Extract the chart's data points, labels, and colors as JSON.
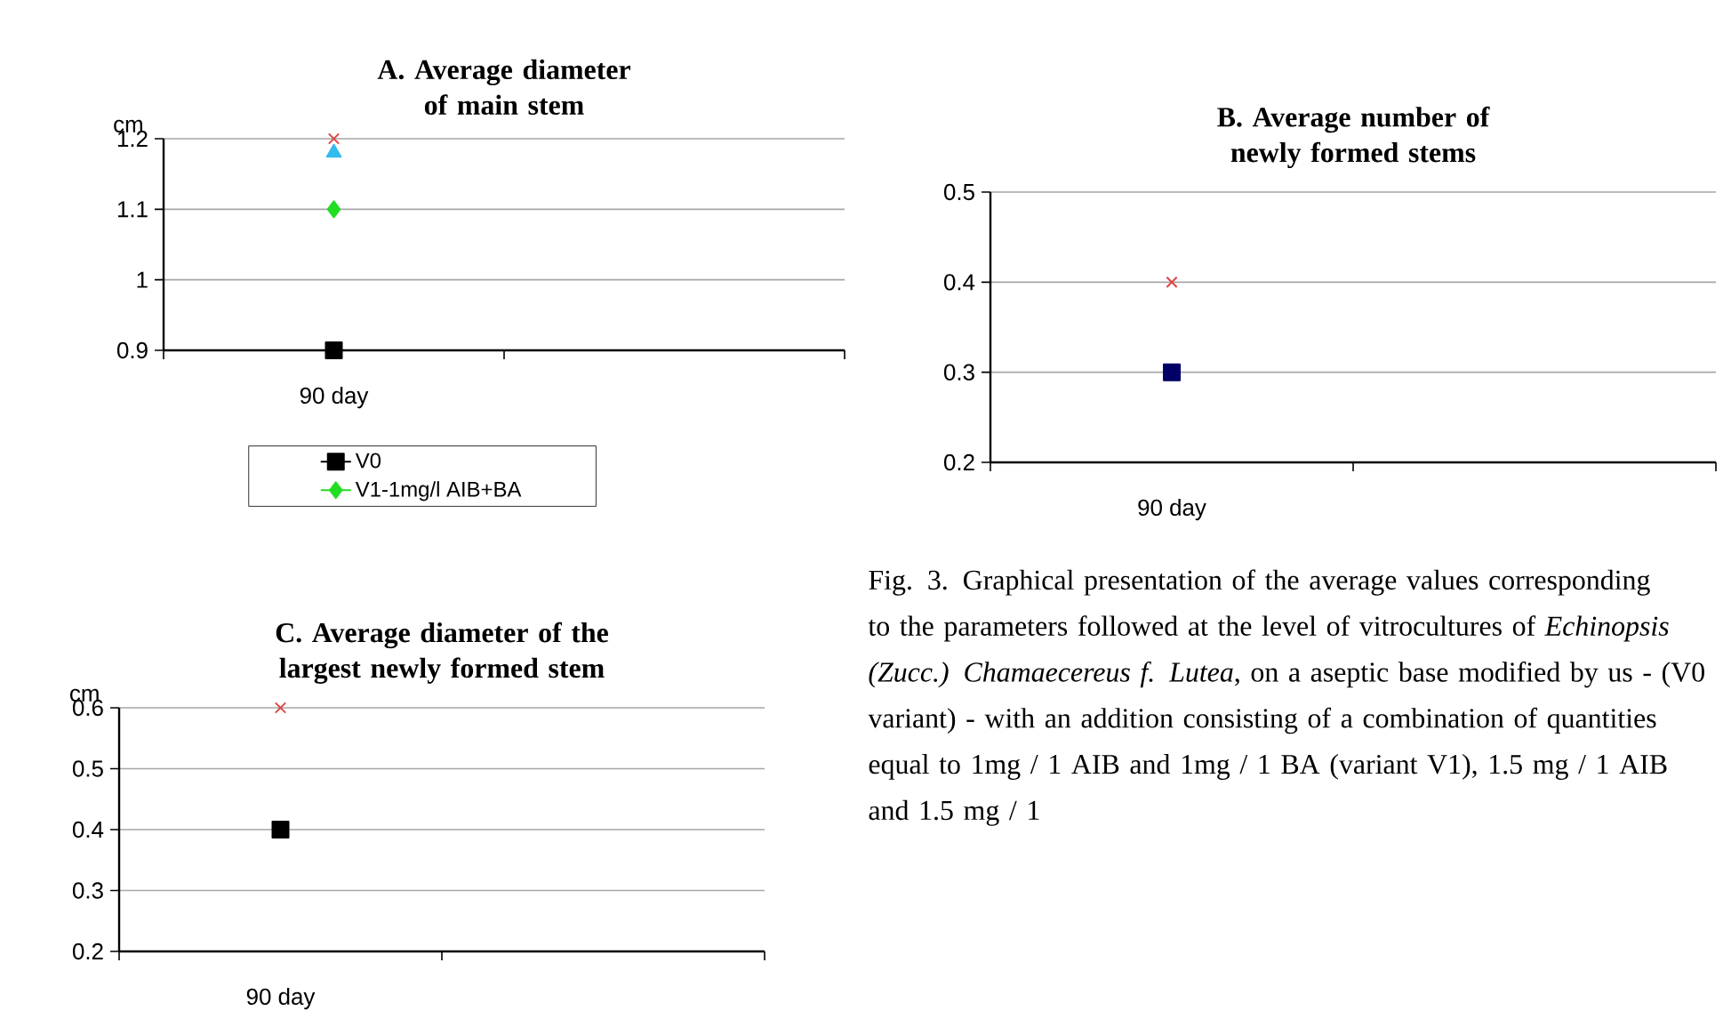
{
  "chart_data": [
    {
      "type": "line",
      "title": "A. Average diameter of main stem",
      "ylabel": "cm",
      "categories": [
        "90 day",
        null
      ],
      "ylim": [
        0.9,
        1.2
      ],
      "yticks": [
        0.9,
        1,
        1.1,
        1.2
      ],
      "grid": "y",
      "legend": "bottom",
      "series": [
        {
          "name": "V0",
          "color": "#000000",
          "marker": "square",
          "values": [
            0.9,
            null
          ]
        },
        {
          "name": "V1-1mg/l AIB+BA",
          "color": "#22dd22",
          "marker": "diamond",
          "values": [
            1.1,
            null
          ]
        },
        {
          "color": "#33bbee",
          "marker": "triangle",
          "values": [
            1.18,
            null
          ]
        },
        {
          "color": "#dd4444",
          "marker": "cross",
          "values": [
            1.2,
            null
          ]
        }
      ]
    },
    {
      "type": "line",
      "title": "B. Average number of newly formed stems",
      "categories": [
        "90 day",
        null
      ],
      "ylim": [
        0.2,
        0.5
      ],
      "yticks": [
        0.2,
        0.3,
        0.4,
        0.5
      ],
      "grid": "y",
      "series": [
        {
          "color": "#000066",
          "marker": "square",
          "values": [
            0.3,
            null
          ]
        },
        {
          "color": "#dd4444",
          "marker": "cross",
          "values": [
            0.4,
            null
          ]
        }
      ]
    },
    {
      "type": "line",
      "title": "C. Average diameter of the largest newly formed stem",
      "ylabel": "cm",
      "categories": [
        "90 day",
        null
      ],
      "ylim": [
        0.2,
        0.6
      ],
      "yticks": [
        0.2,
        0.3,
        0.4,
        0.5,
        0.6
      ],
      "grid": "y",
      "series": [
        {
          "color": "#000000",
          "marker": "square",
          "values": [
            0.4,
            null
          ]
        },
        {
          "color": "#dd4444",
          "marker": "cross",
          "values": [
            0.6,
            null
          ]
        }
      ]
    },
    {
      "type": "other",
      "annotations": [
        "Fig. 3. Graphical presentation of the average values corresponding to the parameters followed at the level of vitrocultures of *Echinopsis (Zucc.) Chamaecereus f. Lutea*, on a aseptic base modified by us - (V0 variant) - with an addition consisting of a combination of quantities equal to 1mg / 1 AIB and 1mg / 1 BA (variant V1), 1.5 mg / 1 AIB and 1.5 mg / 1"
      ]
    }
  ]
}
